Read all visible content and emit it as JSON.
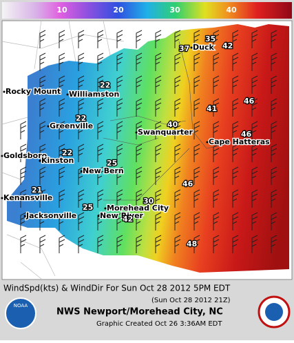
{
  "colorbar": {
    "range": [
      0,
      50
    ],
    "ticks": [
      10,
      20,
      30,
      40
    ]
  },
  "cities": [
    "Rocky Mount",
    "Williamston",
    "Greenville",
    "Goldsboro",
    "Kinston",
    "New Bern",
    "Kenansville",
    "Jacksonville",
    "New River",
    "Morehead City",
    "Swanquarter",
    "Cape Hatteras",
    "Duck"
  ],
  "wind_speeds": [
    35,
    37,
    42,
    22,
    41,
    46,
    22,
    40,
    46,
    22,
    25,
    46,
    21,
    30,
    25,
    42,
    48
  ],
  "footer": {
    "title": "WindSpd(kts) & WindDir For Sun Oct 28 2012   5PM EDT",
    "utc": "(Sun Oct 28 2012 21Z)",
    "office": "NWS Newport/Morehead City, NC",
    "created": "Graphic Created Oct 26  3:36AM EDT",
    "left_logo": "NOAA"
  }
}
